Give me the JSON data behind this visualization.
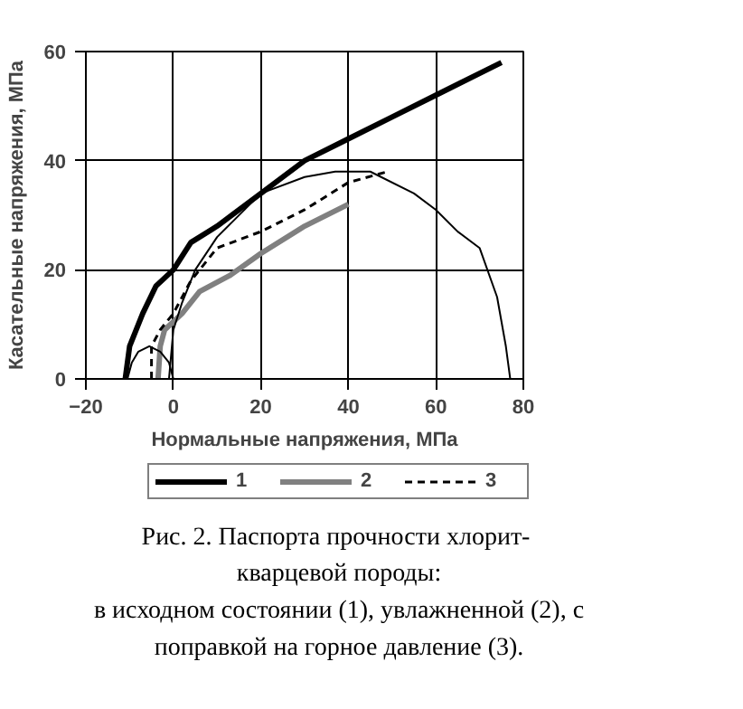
{
  "chart_data": {
    "type": "line",
    "xlabel": "Нормальные напряжения, МПа",
    "ylabel": "Касательные напряжения, МПа",
    "xlim": [
      -20,
      80
    ],
    "ylim": [
      0,
      60
    ],
    "xticks": [
      -20,
      0,
      20,
      40,
      60,
      80
    ],
    "yticks": [
      0,
      20,
      40,
      60
    ],
    "grid": true,
    "legend": "bottom",
    "marker": "none",
    "series": [
      {
        "name": "1",
        "color": "#000000",
        "x": [
          -11,
          -10,
          -7,
          -4,
          0,
          4,
          10,
          20,
          30,
          40,
          50,
          60,
          75
        ],
        "values": [
          0,
          6,
          12,
          17,
          20,
          25,
          28,
          34,
          40,
          44,
          48,
          52,
          58
        ]
      },
      {
        "name": "2",
        "color": "#808080",
        "x": [
          -3.5,
          -3,
          -2,
          2,
          6,
          13,
          20,
          30,
          40
        ],
        "values": [
          0,
          6,
          9,
          12,
          16,
          19,
          23,
          28,
          32
        ]
      },
      {
        "name": "3",
        "color": "#000000",
        "line_style": "dashed",
        "x": [
          -5,
          -5,
          -3,
          0,
          4,
          10,
          20,
          30,
          40,
          49
        ],
        "values": [
          0,
          6,
          9,
          12,
          18,
          24,
          27,
          31,
          36,
          38
        ]
      },
      {
        "color": "#000000",
        "x": [
          -1,
          0,
          2,
          5,
          10,
          20,
          30,
          37,
          45,
          55,
          60,
          65,
          70,
          74,
          76,
          77
        ],
        "values": [
          0,
          9,
          14,
          20,
          26,
          34,
          37,
          38,
          38,
          34,
          31,
          27,
          24,
          15,
          6,
          0
        ]
      },
      {
        "color": "#000000",
        "x": [
          -10.5,
          -9.5,
          -8,
          -5.5,
          -3,
          -1,
          0
        ],
        "values": [
          0,
          3,
          5,
          6,
          5,
          3,
          0
        ]
      }
    ],
    "annotations": [
      "Рис. 2.  Паспорта прочности хлорит-",
      "кварцевой породы:",
      "в исходном состоянии (1), увлажненной (2), с",
      "поправкой на горное давление (3)."
    ]
  }
}
